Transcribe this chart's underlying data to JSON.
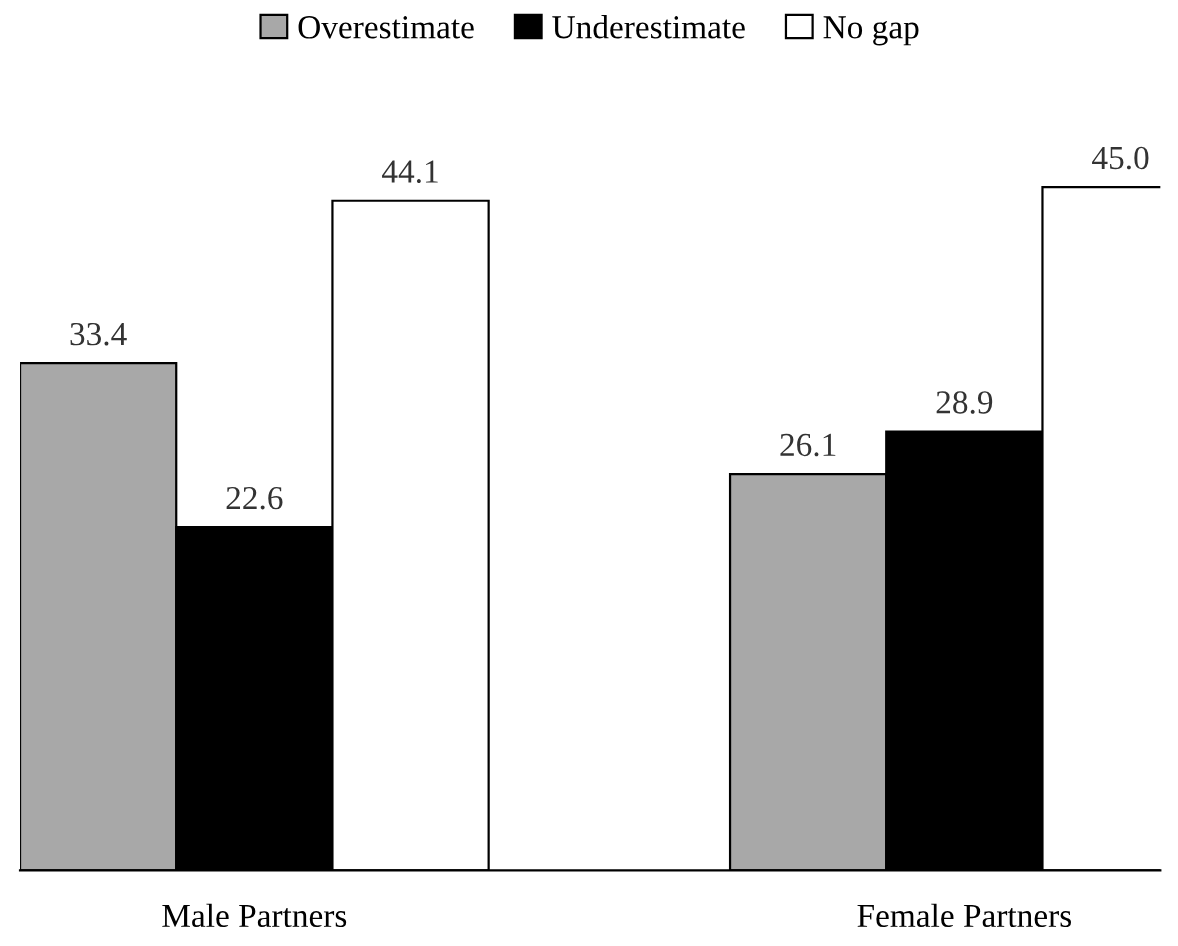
{
  "chart_data": {
    "type": "bar",
    "categories": [
      "Male Partners",
      "Female Partners"
    ],
    "series": [
      {
        "name": "Overestimate",
        "color": "#a8a8a8",
        "values": [
          33.4,
          26.1
        ],
        "value_labels": [
          "33.4",
          "26.1"
        ]
      },
      {
        "name": "Underestimate",
        "color": "#000000",
        "values": [
          22.6,
          28.9
        ],
        "value_labels": [
          "22.6",
          "28.9"
        ]
      },
      {
        "name": "No gap",
        "color": "#ffffff",
        "values": [
          44.1,
          45.0
        ],
        "value_labels": [
          "44.1",
          "45.0"
        ]
      }
    ],
    "legend": "top",
    "tick_labels": "x",
    "grid": false
  }
}
